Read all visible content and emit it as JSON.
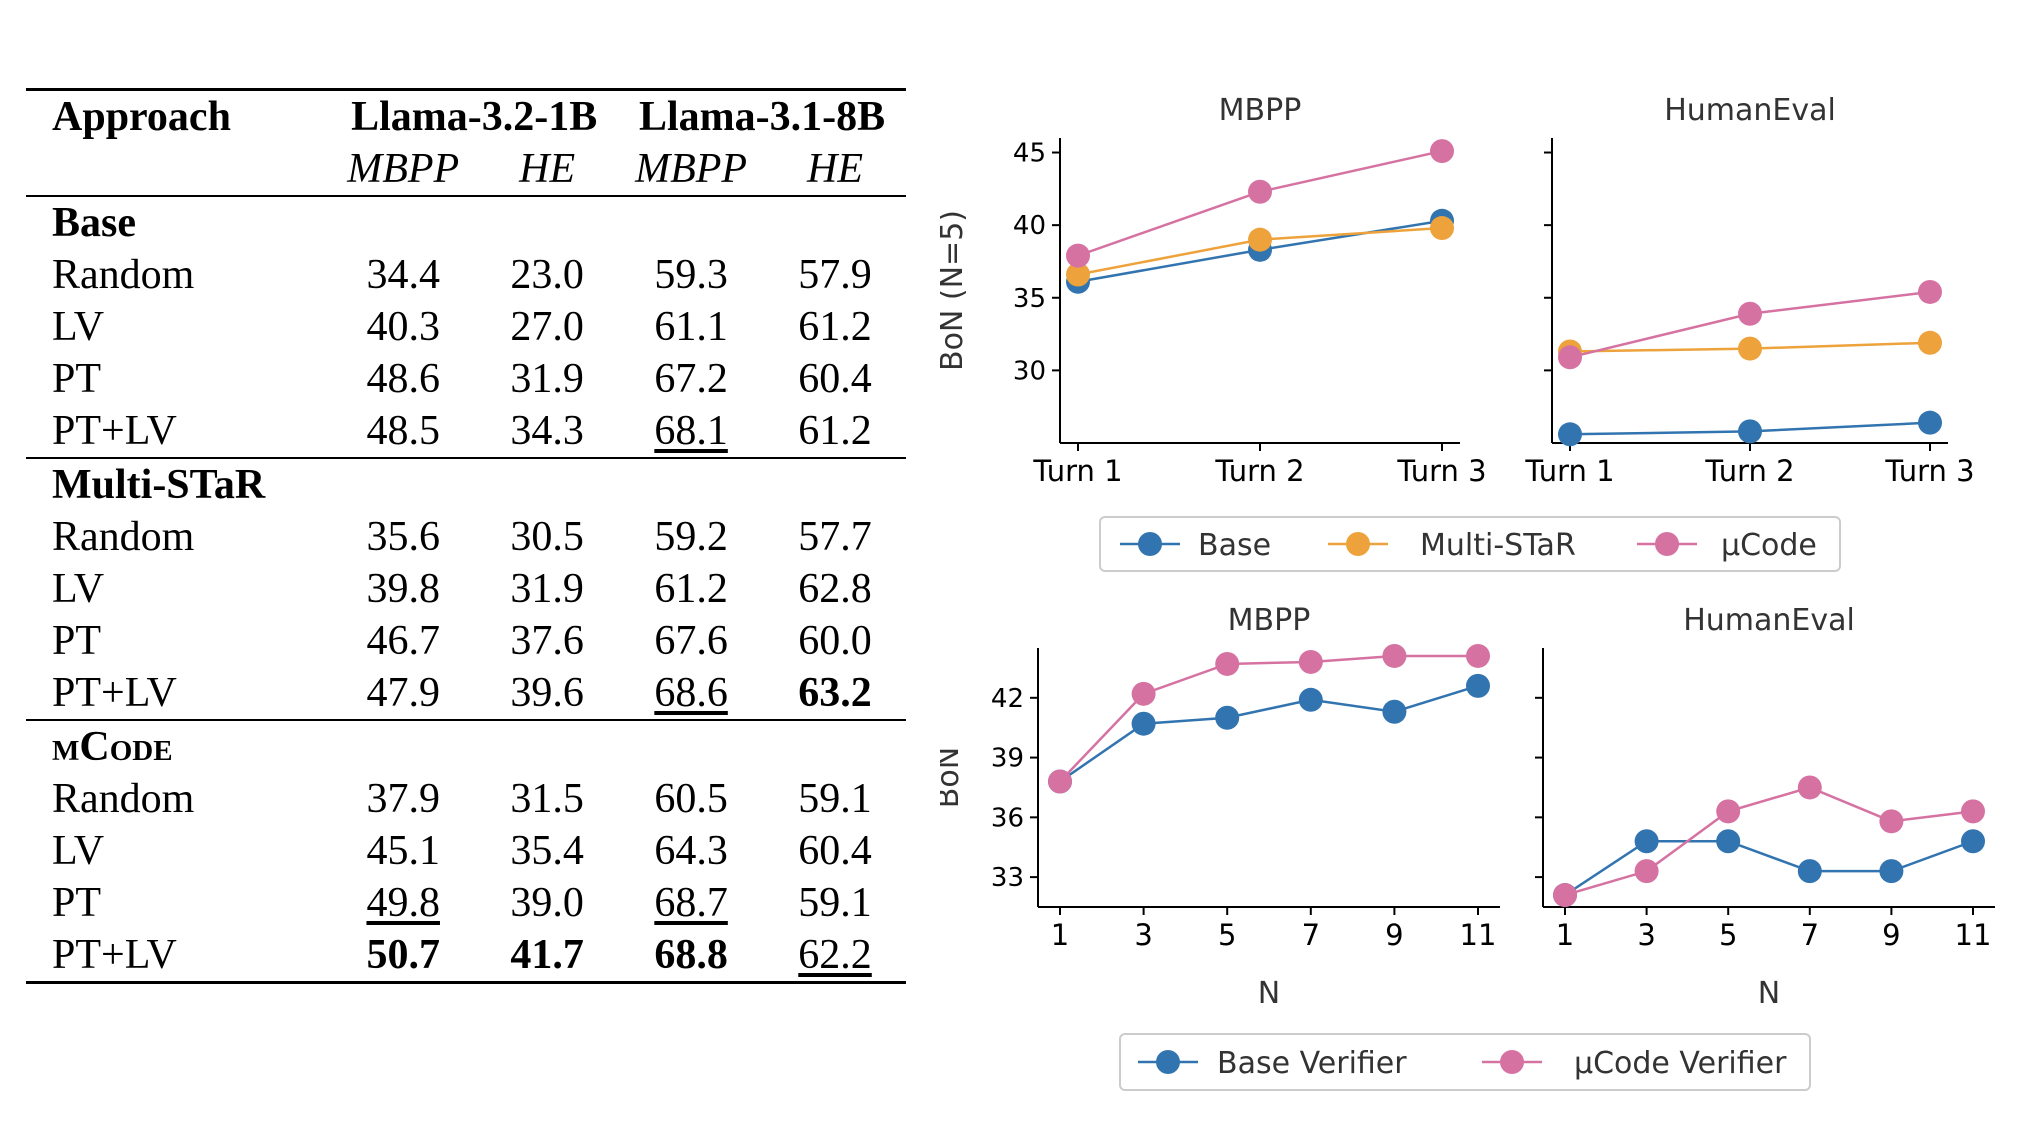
{
  "table": {
    "header": {
      "approach": "Approach",
      "model1": "Llama-3.2-1B",
      "model2": "Llama-3.1-8B",
      "sub": [
        "MBPP",
        "HE",
        "MBPP",
        "HE"
      ]
    },
    "groups": [
      {
        "name": "Base",
        "rows": [
          {
            "label": "Random",
            "cells": [
              {
                "v": "34.4"
              },
              {
                "v": "23.0"
              },
              {
                "v": "59.3"
              },
              {
                "v": "57.9"
              }
            ]
          },
          {
            "label": "LV",
            "cells": [
              {
                "v": "40.3"
              },
              {
                "v": "27.0"
              },
              {
                "v": "61.1"
              },
              {
                "v": "61.2"
              }
            ]
          },
          {
            "label": "PT",
            "cells": [
              {
                "v": "48.6"
              },
              {
                "v": "31.9"
              },
              {
                "v": "67.2"
              },
              {
                "v": "60.4"
              }
            ]
          },
          {
            "label": "PT+LV",
            "cells": [
              {
                "v": "48.5"
              },
              {
                "v": "34.3"
              },
              {
                "v": "68.1",
                "underline": true
              },
              {
                "v": "61.2"
              }
            ]
          }
        ]
      },
      {
        "name": "Multi-STaR",
        "rows": [
          {
            "label": "Random",
            "cells": [
              {
                "v": "35.6"
              },
              {
                "v": "30.5"
              },
              {
                "v": "59.2"
              },
              {
                "v": "57.7"
              }
            ]
          },
          {
            "label": "LV",
            "cells": [
              {
                "v": "39.8"
              },
              {
                "v": "31.9"
              },
              {
                "v": "61.2"
              },
              {
                "v": "62.8"
              }
            ]
          },
          {
            "label": "PT",
            "cells": [
              {
                "v": "46.7"
              },
              {
                "v": "37.6"
              },
              {
                "v": "67.6"
              },
              {
                "v": "60.0"
              }
            ]
          },
          {
            "label": "PT+LV",
            "cells": [
              {
                "v": "47.9"
              },
              {
                "v": "39.6"
              },
              {
                "v": "68.6",
                "underline": true
              },
              {
                "v": "63.2",
                "bold": true
              }
            ]
          }
        ]
      },
      {
        "name": "μCode",
        "smallcaps": true,
        "rows": [
          {
            "label": "Random",
            "cells": [
              {
                "v": "37.9"
              },
              {
                "v": "31.5"
              },
              {
                "v": "60.5"
              },
              {
                "v": "59.1"
              }
            ]
          },
          {
            "label": "LV",
            "cells": [
              {
                "v": "45.1"
              },
              {
                "v": "35.4"
              },
              {
                "v": "64.3"
              },
              {
                "v": "60.4"
              }
            ]
          },
          {
            "label": "PT",
            "cells": [
              {
                "v": "49.8",
                "underline": true
              },
              {
                "v": "39.0"
              },
              {
                "v": "68.7",
                "underline": true
              },
              {
                "v": "59.1"
              }
            ]
          },
          {
            "label": "PT+LV",
            "cells": [
              {
                "v": "50.7",
                "bold": true
              },
              {
                "v": "41.7",
                "bold": true
              },
              {
                "v": "68.8",
                "bold": true
              },
              {
                "v": "62.2",
                "underline": true
              }
            ]
          }
        ]
      }
    ]
  },
  "chart_data": [
    {
      "type": "line",
      "title": "MBPP",
      "ylabel": "BoN (N=5)",
      "xlabel": "",
      "categories": [
        "Turn 1",
        "Turn 2",
        "Turn 3"
      ],
      "ylim": [
        25,
        46
      ],
      "yticks": [
        30,
        35,
        40,
        45
      ],
      "series": [
        {
          "name": "Base",
          "color": "#3274b0",
          "values": [
            36.1,
            38.3,
            40.3
          ]
        },
        {
          "name": "Multi-STaR",
          "color": "#eda23c",
          "values": [
            36.6,
            39.0,
            39.8
          ]
        },
        {
          "name": "μCode",
          "color": "#d672a2",
          "values": [
            37.9,
            42.3,
            45.1
          ]
        }
      ]
    },
    {
      "type": "line",
      "title": "HumanEval",
      "ylabel": "",
      "xlabel": "",
      "categories": [
        "Turn 1",
        "Turn 2",
        "Turn 3"
      ],
      "ylim": [
        25,
        46
      ],
      "yticks": [
        30,
        35,
        40,
        45
      ],
      "series": [
        {
          "name": "Base",
          "color": "#3274b0",
          "values": [
            25.6,
            25.8,
            26.4
          ]
        },
        {
          "name": "Multi-STaR",
          "color": "#eda23c",
          "values": [
            31.3,
            31.5,
            31.9
          ]
        },
        {
          "name": "μCode",
          "color": "#d672a2",
          "values": [
            30.9,
            33.9,
            35.4
          ]
        }
      ]
    },
    {
      "type": "line",
      "title": "MBPP",
      "ylabel": "BoN",
      "xlabel": "N",
      "categories": [
        "1",
        "3",
        "5",
        "7",
        "9",
        "11"
      ],
      "ylim": [
        31.5,
        44.5
      ],
      "yticks": [
        33,
        36,
        39,
        42
      ],
      "series": [
        {
          "name": "Base Verifier",
          "color": "#3274b0",
          "values": [
            37.8,
            40.7,
            41.0,
            41.9,
            41.3,
            42.6
          ]
        },
        {
          "name": "μCode Verifier",
          "color": "#d672a2",
          "values": [
            37.8,
            42.2,
            43.7,
            43.8,
            44.1,
            44.1
          ]
        }
      ]
    },
    {
      "type": "line",
      "title": "HumanEval",
      "ylabel": "",
      "xlabel": "N",
      "categories": [
        "1",
        "3",
        "5",
        "7",
        "9",
        "11"
      ],
      "ylim": [
        31.5,
        44.5
      ],
      "yticks": [
        33,
        36,
        39,
        42
      ],
      "series": [
        {
          "name": "Base Verifier",
          "color": "#3274b0",
          "values": [
            32.1,
            34.8,
            34.8,
            33.3,
            33.3,
            34.8
          ]
        },
        {
          "name": "μCode Verifier",
          "color": "#d672a2",
          "values": [
            32.1,
            33.3,
            36.3,
            37.5,
            35.8,
            36.3
          ]
        }
      ]
    }
  ],
  "legends": [
    {
      "entries": [
        {
          "label": "Base",
          "color": "#3274b0"
        },
        {
          "label": "Multi-STaR",
          "color": "#eda23c"
        },
        {
          "label": "μCode",
          "color": "#d672a2"
        }
      ]
    },
    {
      "entries": [
        {
          "label": "Base Verifier",
          "color": "#3274b0"
        },
        {
          "label": "μCode Verifier",
          "color": "#d672a2"
        }
      ]
    }
  ]
}
